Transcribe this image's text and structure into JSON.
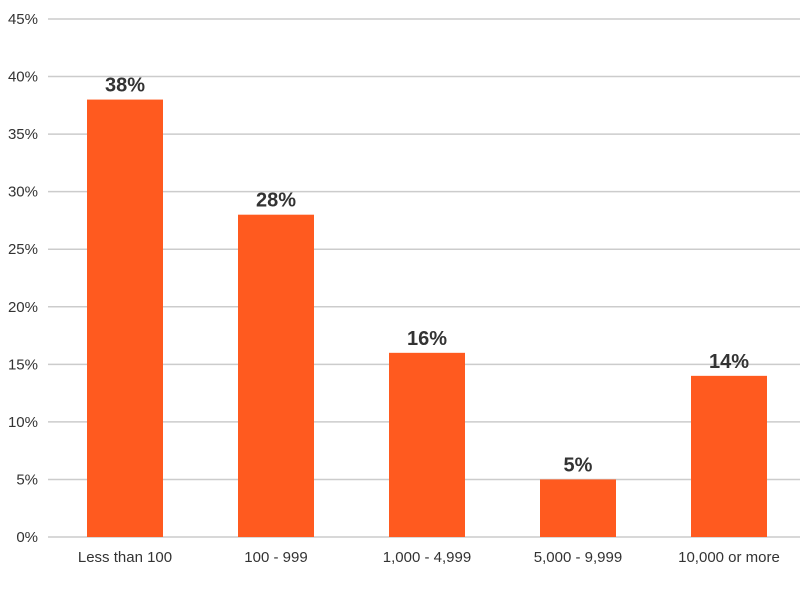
{
  "chart_data": {
    "type": "bar",
    "categories": [
      "Less than 100",
      "100 - 999",
      "1,000 - 4,999",
      "5,000 - 9,999",
      "10,000 or more"
    ],
    "values": [
      38,
      28,
      16,
      5,
      14
    ],
    "data_labels": [
      "38%",
      "28%",
      "16%",
      "5%",
      "14%"
    ],
    "ylim": [
      0,
      45
    ],
    "y_ticks": [
      0,
      5,
      10,
      15,
      20,
      25,
      30,
      35,
      40,
      45
    ],
    "y_tick_labels": [
      "0%",
      "5%",
      "10%",
      "15%",
      "20%",
      "25%",
      "30%",
      "35%",
      "40%",
      "45%"
    ],
    "grid": true,
    "bar_color": "#ff5a1f",
    "grid_color": "#cccccc",
    "text_color": "#333333"
  }
}
